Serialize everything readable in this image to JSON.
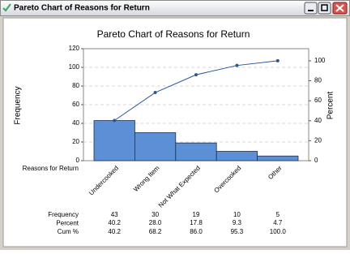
{
  "window": {
    "title": "Pareto Chart of Reasons for Return"
  },
  "chart_data": {
    "type": "pareto",
    "title": "Pareto Chart of Reasons for Return",
    "x_label": "Reasons for Return",
    "y_label": "Frequency",
    "y2_label": "Percent",
    "categories": [
      "Undercooked",
      "Wrong Item",
      "Not What Expected",
      "Overcooked",
      "Other"
    ],
    "values": [
      43,
      30,
      19,
      10,
      5
    ],
    "color": "#5b8fd6",
    "percent": {
      "values": [
        40.2,
        28.0,
        17.8,
        9.3,
        4.7
      ],
      "value_labels": [
        "40.2",
        "28.0",
        "17.8",
        "9.3",
        "4.7"
      ]
    },
    "cum_percent": {
      "values": [
        40.2,
        68.2,
        86.0,
        95.3,
        100.0
      ],
      "value_labels": [
        "40.2",
        "68.2",
        "86.0",
        "95.3",
        "100.0"
      ],
      "axis": "y2",
      "color": "#2b5797"
    },
    "row_labels": [
      "Frequency",
      "Percent",
      "Cum %"
    ],
    "ylim": [
      0,
      120
    ],
    "yticks": [
      0,
      20,
      40,
      60,
      80,
      100,
      120
    ],
    "y2lim": [
      0,
      112.1
    ],
    "y2ticks": [
      0,
      20,
      40,
      60,
      80,
      100
    ],
    "grid": true
  }
}
